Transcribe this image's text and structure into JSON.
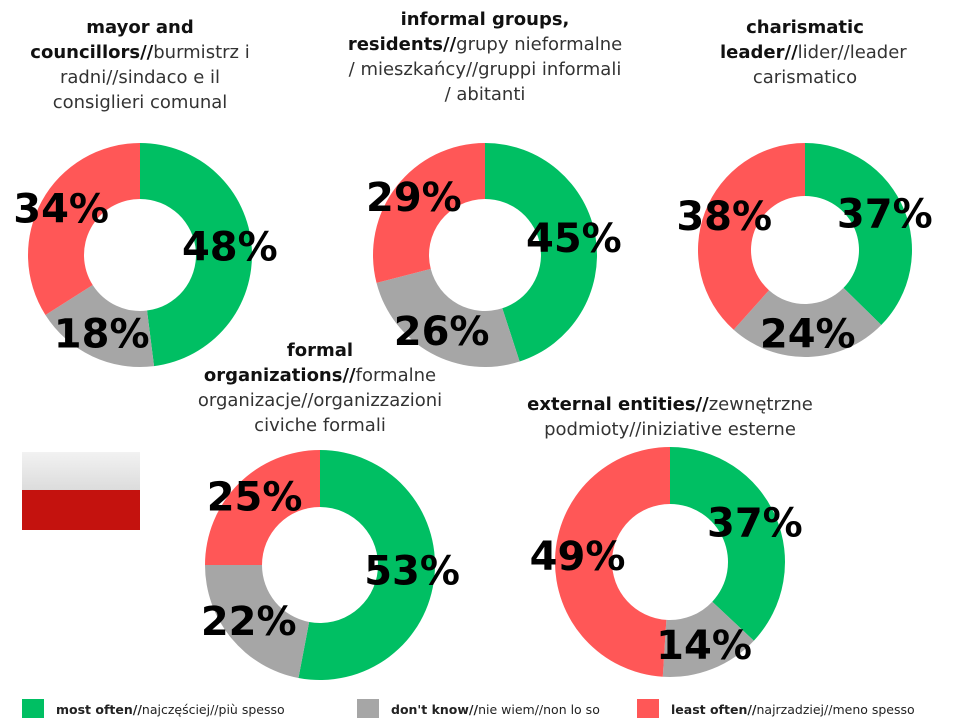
{
  "chart_data": [
    {
      "type": "pie",
      "title": [
        {
          "text": "mayor and councillors//",
          "bold": true
        },
        {
          "text": "burmistrz i radni//sindaco e il consiglieri comunal",
          "bold": false
        }
      ],
      "values": [
        48,
        18,
        34
      ],
      "value_labels": [
        "48%",
        "18%",
        "34%"
      ]
    },
    {
      "type": "pie",
      "title": [
        {
          "text": "informal groups, residents//",
          "bold": true
        },
        {
          "text": "grupy nieformalne / mieszkańcy//gruppi informali / abitanti",
          "bold": false
        }
      ],
      "values": [
        45,
        26,
        29
      ],
      "value_labels": [
        "45%",
        "26%",
        "29%"
      ]
    },
    {
      "type": "pie",
      "title": [
        {
          "text": "charismatic leader//",
          "bold": true
        },
        {
          "text": "lider//leader carismatico",
          "bold": false
        }
      ],
      "values": [
        37,
        24,
        38
      ],
      "value_labels": [
        "37%",
        "24%",
        "38%"
      ]
    },
    {
      "type": "pie",
      "title": [
        {
          "text": "formal organizations//",
          "bold": true
        },
        {
          "text": "formalne organizacje//organizzazioni civiche formali",
          "bold": false
        }
      ],
      "values": [
        53,
        22,
        25
      ],
      "value_labels": [
        "53%",
        "22%",
        "25%"
      ]
    },
    {
      "type": "pie",
      "title": [
        {
          "text": "external entities//",
          "bold": true
        },
        {
          "text": "zewnętrzne podmioty//iniziative esterne",
          "bold": false
        }
      ],
      "values": [
        37,
        14,
        49
      ],
      "value_labels": [
        "37%",
        "14%",
        "49%"
      ]
    }
  ],
  "legend": [
    {
      "bold": "most often//",
      "text": "najczęściej//più spesso",
      "color": "#00bf63"
    },
    {
      "bold": "don't know//",
      "text": "nie wiem//non lo so",
      "color": "#a6a6a6"
    },
    {
      "bold": "least often//",
      "text": "najrzadziej//meno spesso",
      "color": "#ff5757"
    }
  ]
}
